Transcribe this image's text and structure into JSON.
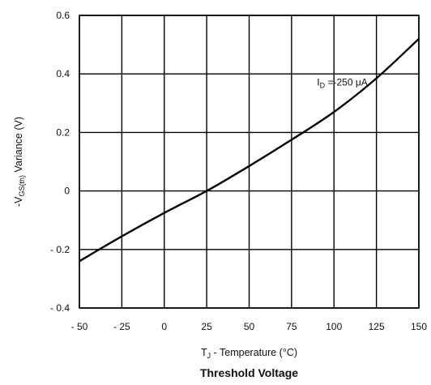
{
  "chart_data": {
    "type": "line",
    "title": "Threshold Voltage",
    "xlabel": {
      "main": "T",
      "sub": "J",
      "rest": " - Temperature (°C)"
    },
    "ylabel": {
      "main": "-V",
      "sub": "GS(th)",
      "rest": "  Variance (V)"
    },
    "xlim": [
      -50,
      150
    ],
    "ylim": [
      -0.4,
      0.6
    ],
    "x_ticks": [
      -50,
      -25,
      0,
      25,
      50,
      75,
      100,
      125,
      150
    ],
    "x_tick_labels": [
      "- 50",
      "- 25",
      "0",
      "25",
      "50",
      "75",
      "100",
      "125",
      "150"
    ],
    "y_ticks": [
      -0.4,
      -0.2,
      0,
      0.2,
      0.4,
      0.6
    ],
    "y_tick_labels": [
      "- 0.4",
      "- 0.2",
      "0",
      "0.2",
      "0.4",
      "0.6"
    ],
    "grid": true,
    "annotation": {
      "main": "I",
      "sub": "D",
      "rest": " =-250 μA"
    },
    "series": [
      {
        "x": [
          -50,
          -25,
          0,
          25,
          50,
          75,
          100,
          125,
          150
        ],
        "y": [
          -0.24,
          -0.155,
          -0.075,
          0.0,
          0.085,
          0.175,
          0.27,
          0.385,
          0.52
        ]
      }
    ]
  }
}
